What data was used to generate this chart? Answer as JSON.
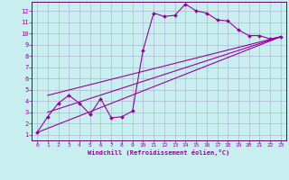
{
  "xlabel": "Windchill (Refroidissement éolien,°C)",
  "background_color": "#c8eef0",
  "grid_color": "#aaaacc",
  "line_color": "#990099",
  "spine_color": "#660066",
  "xlim": [
    -0.5,
    23.5
  ],
  "ylim": [
    0.5,
    12.8
  ],
  "xticks": [
    0,
    1,
    2,
    3,
    4,
    5,
    6,
    7,
    8,
    9,
    10,
    11,
    12,
    13,
    14,
    15,
    16,
    17,
    18,
    19,
    20,
    21,
    22,
    23
  ],
  "yticks": [
    1,
    2,
    3,
    4,
    5,
    6,
    7,
    8,
    9,
    10,
    11,
    12
  ],
  "data_x": [
    0,
    1,
    2,
    3,
    4,
    5,
    6,
    7,
    8,
    9,
    10,
    11,
    12,
    13,
    14,
    15,
    16,
    17,
    18,
    19,
    20,
    21,
    22,
    23
  ],
  "data_y": [
    1.2,
    2.6,
    3.8,
    4.5,
    3.8,
    2.8,
    4.2,
    2.5,
    2.6,
    3.1,
    8.5,
    11.8,
    11.5,
    11.6,
    12.6,
    12.0,
    11.8,
    11.2,
    11.1,
    10.3,
    9.8,
    9.8,
    9.5,
    9.7
  ],
  "ref_line1_x": [
    0,
    23
  ],
  "ref_line1_y": [
    1.2,
    9.7
  ],
  "ref_line2_x": [
    1,
    23
  ],
  "ref_line2_y": [
    4.5,
    9.7
  ],
  "ref_line3_x": [
    1,
    23
  ],
  "ref_line3_y": [
    3.0,
    9.7
  ]
}
